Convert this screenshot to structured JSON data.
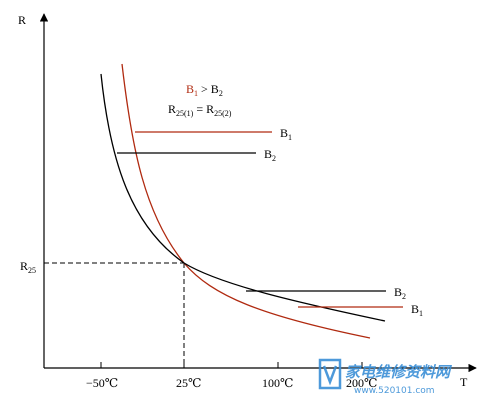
{
  "axes": {
    "y_label": "R",
    "x_label": "T",
    "r25_label": "R",
    "r25_sub": "25",
    "x_ticks": [
      "−50℃",
      "25℃",
      "100℃",
      "200℃"
    ]
  },
  "legend": {
    "line1": {
      "a": "B",
      "a_sub": "1",
      "op": " > ",
      "b": "B",
      "b_sub": "2"
    },
    "line2": {
      "a": "R",
      "a_sub": "25(1)",
      "op": " = ",
      "b": "R",
      "b_sub": "25(2)"
    }
  },
  "markers": {
    "top_b1": {
      "text": "B",
      "sub": "1"
    },
    "top_b2": {
      "text": "B",
      "sub": "2"
    },
    "bottom_b2": {
      "text": "B",
      "sub": "2"
    },
    "bottom_b1": {
      "text": "B",
      "sub": "1"
    }
  },
  "curves": [
    {
      "name": "B1",
      "color": "#b02a10"
    },
    {
      "name": "B2",
      "color": "#000000"
    }
  ],
  "watermark": {
    "title": "家电维修资料网",
    "url": "www.520101.com",
    "logo_color": "#3a8fd6"
  }
}
